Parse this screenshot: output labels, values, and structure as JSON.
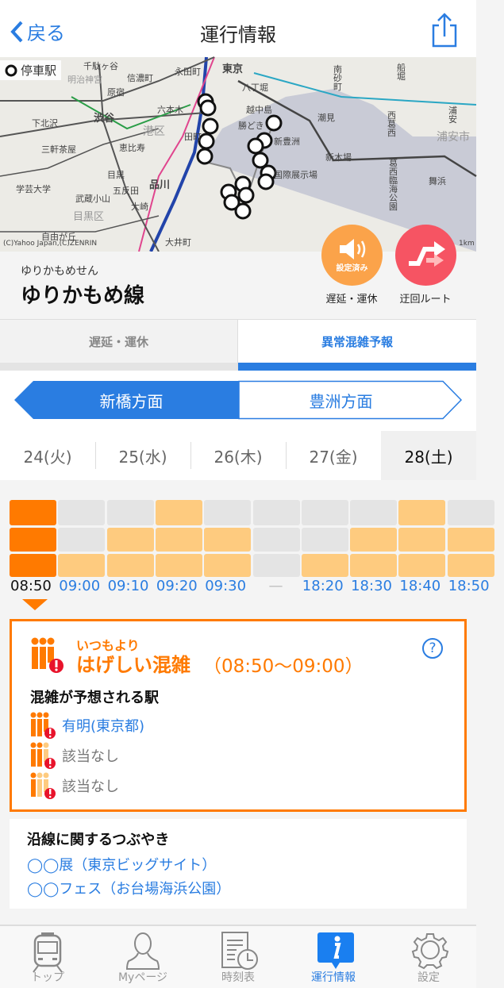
{
  "header": {
    "back_label": "戻る",
    "title": "運行情報",
    "share_icon": "share-icon"
  },
  "map": {
    "legend": "停車駅",
    "copyright": "(C)Yahoo Japan,(C)ZENRIN",
    "scale": "1km",
    "labels": [
      "東京",
      "永田町",
      "八丁堀",
      "千駄ヶ谷",
      "信濃町",
      "原宿",
      "渋谷",
      "六本木",
      "越中島",
      "勝どき",
      "潮見",
      "新豊洲",
      "恵比寿",
      "港区",
      "田町",
      "新木場",
      "葛西臨海公園",
      "舞浜",
      "目黒",
      "品川",
      "五反田",
      "大崎",
      "学芸大学",
      "武蔵小山",
      "三軒茶屋",
      "下北沢",
      "目黒区",
      "国際展示場",
      "大井町",
      "自由が丘",
      "南砂町",
      "西葛西",
      "浦安",
      "浦安市",
      "船堀",
      "明治神宮"
    ]
  },
  "line": {
    "yomi": "ゆりかもめせん",
    "name": "ゆりかもめ線"
  },
  "actions": {
    "delay_badge": "設定済み",
    "delay_label": "遅延・運休",
    "route_label": "迂回ルート"
  },
  "tabs": [
    {
      "label": "遅延・運休",
      "active": false
    },
    {
      "label": "異常混雑予報",
      "active": true
    }
  ],
  "directions": [
    {
      "label": "新橋方面",
      "active": true
    },
    {
      "label": "豊洲方面",
      "active": false
    }
  ],
  "dates": [
    {
      "label": "24(火)"
    },
    {
      "label": "25(水)"
    },
    {
      "label": "26(木)"
    },
    {
      "label": "27(金)"
    },
    {
      "label": "28(土)",
      "selected": true
    }
  ],
  "congestion_grid": {
    "levels_max": 3,
    "slots": [
      {
        "time": "08:50",
        "level": 3,
        "selected": true
      },
      {
        "time": "09:00",
        "level": 1
      },
      {
        "time": "09:10",
        "level": 2
      },
      {
        "time": "09:20",
        "level": 3
      },
      {
        "time": "09:30",
        "level": 2
      },
      {
        "time": "—",
        "level": 0
      },
      {
        "time": "18:20",
        "level": 1
      },
      {
        "time": "18:30",
        "level": 2
      },
      {
        "time": "18:40",
        "level": 3
      },
      {
        "time": "18:50",
        "level": 2
      }
    ]
  },
  "detail": {
    "prefix": "いつもより",
    "level_text": "はげしい混雑",
    "time_range": "（08:50～09:00）",
    "help_icon": "question-icon",
    "stations_title": "混雑が予想される駅",
    "stations": [
      {
        "name": "有明(東京都)",
        "level": 3,
        "link": true
      },
      {
        "name": "該当なし",
        "level": 2,
        "link": false
      },
      {
        "name": "該当なし",
        "level": 1,
        "link": false
      }
    ]
  },
  "tweets": {
    "title": "沿線に関するつぶやき",
    "items": [
      "◯◯展（東京ビッグサイト）",
      "◯◯フェス（お台場海浜公園）"
    ]
  },
  "tabbar": [
    {
      "label": "トップ",
      "icon": "train-icon"
    },
    {
      "label": "Myページ",
      "icon": "person-icon"
    },
    {
      "label": "時刻表",
      "icon": "timetable-icon"
    },
    {
      "label": "運行情報",
      "icon": "info-icon",
      "active": true
    },
    {
      "label": "設定",
      "icon": "gear-icon"
    }
  ],
  "colors": {
    "accent": "#2a7de1",
    "heavy": "#ff7a00",
    "moderate": "#fecb7f",
    "empty": "#e4e4e4",
    "alert": "#e8132b",
    "delay_button": "#fba34a",
    "route_button": "#f65463"
  }
}
